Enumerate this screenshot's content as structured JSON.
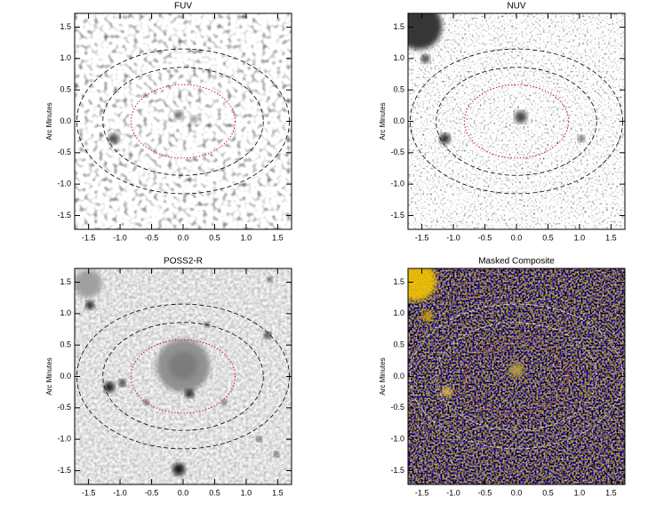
{
  "chart_data": [
    {
      "type": "image",
      "title": "FUV",
      "ylabel": "Arc Minutes",
      "style": "fuv",
      "xlim": [
        -1.72,
        1.72
      ],
      "ylim": [
        -1.72,
        1.72
      ],
      "xticks": [
        -1.5,
        {
          "value": -1,
          "label": "-1.0"
        },
        -0.5,
        {
          "value": 0,
          "label": "0.0"
        },
        0.5,
        {
          "value": 1,
          "label": "1.0"
        },
        1.5
      ],
      "yticks": [
        -1.5,
        {
          "value": -1,
          "label": "-1.0"
        },
        -0.5,
        {
          "value": 0,
          "label": "0.0"
        },
        0.5,
        {
          "value": 1,
          "label": "1.0"
        },
        1.5
      ]
    },
    {
      "type": "image",
      "title": "NUV",
      "ylabel": "Arc Minutes",
      "style": "nuv",
      "xlim": [
        -1.72,
        1.72
      ],
      "ylim": [
        -1.72,
        1.72
      ],
      "xticks": [
        -1.5,
        {
          "value": -1,
          "label": "-1.0"
        },
        -0.5,
        {
          "value": 0,
          "label": "0.0"
        },
        0.5,
        {
          "value": 1,
          "label": "1.0"
        },
        1.5
      ],
      "yticks": [
        -1.5,
        {
          "value": -1,
          "label": "-1.0"
        },
        -0.5,
        {
          "value": 0,
          "label": "0.0"
        },
        0.5,
        {
          "value": 1,
          "label": "1.0"
        },
        1.5
      ]
    },
    {
      "type": "image",
      "title": "POSS2-R",
      "ylabel": "Arc Minutes",
      "style": "optical",
      "xlim": [
        -1.72,
        1.72
      ],
      "ylim": [
        -1.72,
        1.72
      ],
      "xticks": [
        -1.5,
        {
          "value": -1,
          "label": "-1.0"
        },
        -0.5,
        {
          "value": 0,
          "label": "0.0"
        },
        0.5,
        {
          "value": 1,
          "label": "1.0"
        },
        1.5
      ],
      "yticks": [
        -1.5,
        {
          "value": -1,
          "label": "-1.0"
        },
        -0.5,
        {
          "value": 0,
          "label": "0.0"
        },
        0.5,
        {
          "value": 1,
          "label": "1.0"
        },
        1.5
      ]
    },
    {
      "type": "image",
      "title": "Masked Composite",
      "ylabel": "Arc Minutes",
      "style": "composite",
      "xlim": [
        -1.72,
        1.72
      ],
      "ylim": [
        -1.72,
        1.72
      ],
      "xticks": [
        -1.5,
        {
          "value": -1,
          "label": "-1.0"
        },
        -0.5,
        {
          "value": 0,
          "label": "0.0"
        },
        0.5,
        {
          "value": 1,
          "label": "1.0"
        },
        1.5
      ],
      "yticks": [
        -1.5,
        {
          "value": -1,
          "label": "-1.0"
        },
        -0.5,
        {
          "value": 0,
          "label": "0.0"
        },
        0.5,
        {
          "value": 1,
          "label": "1.0"
        },
        1.5
      ]
    }
  ]
}
